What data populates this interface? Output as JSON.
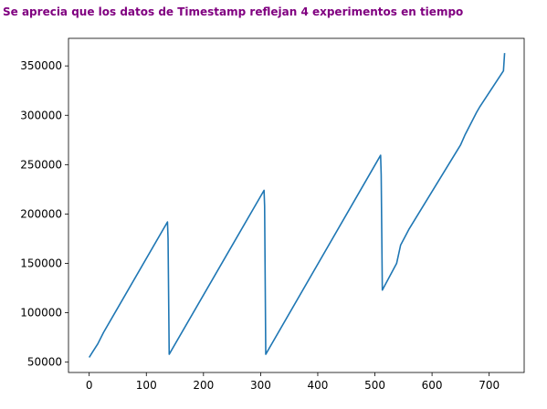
{
  "header": {
    "title": "Se aprecia que los datos de Timestamp reflejan 4 experimentos en tiempo",
    "title_color": "#800080"
  },
  "chart_data": {
    "type": "line",
    "title": "",
    "xlabel": "",
    "ylabel": "",
    "xlim": [
      -36.25,
      761.25
    ],
    "ylim": [
      39550,
      377900
    ],
    "xticks": [
      0,
      100,
      200,
      300,
      400,
      500,
      600,
      700
    ],
    "yticks": [
      50000,
      100000,
      150000,
      200000,
      250000,
      300000,
      350000
    ],
    "xtick_labels": [
      "0",
      "100",
      "200",
      "300",
      "400",
      "500",
      "600",
      "700"
    ],
    "ytick_labels": [
      "50000",
      "100000",
      "150000",
      "200000",
      "250000",
      "300000",
      "350000"
    ],
    "grid": false,
    "legend": "none",
    "series": [
      {
        "color": "#1f77b4",
        "x": [
          0,
          5,
          15,
          25,
          137,
          138,
          140,
          306,
          307,
          309,
          510,
          511,
          513,
          538,
          545,
          560,
          650,
          658,
          678,
          683,
          725,
          727
        ],
        "y": [
          54800,
          59500,
          68500,
          80000,
          192000,
          175000,
          58000,
          224000,
          208000,
          58000,
          259500,
          240000,
          123000,
          150000,
          168500,
          185000,
          270000,
          280500,
          303000,
          308000,
          345000,
          363000
        ]
      }
    ]
  }
}
